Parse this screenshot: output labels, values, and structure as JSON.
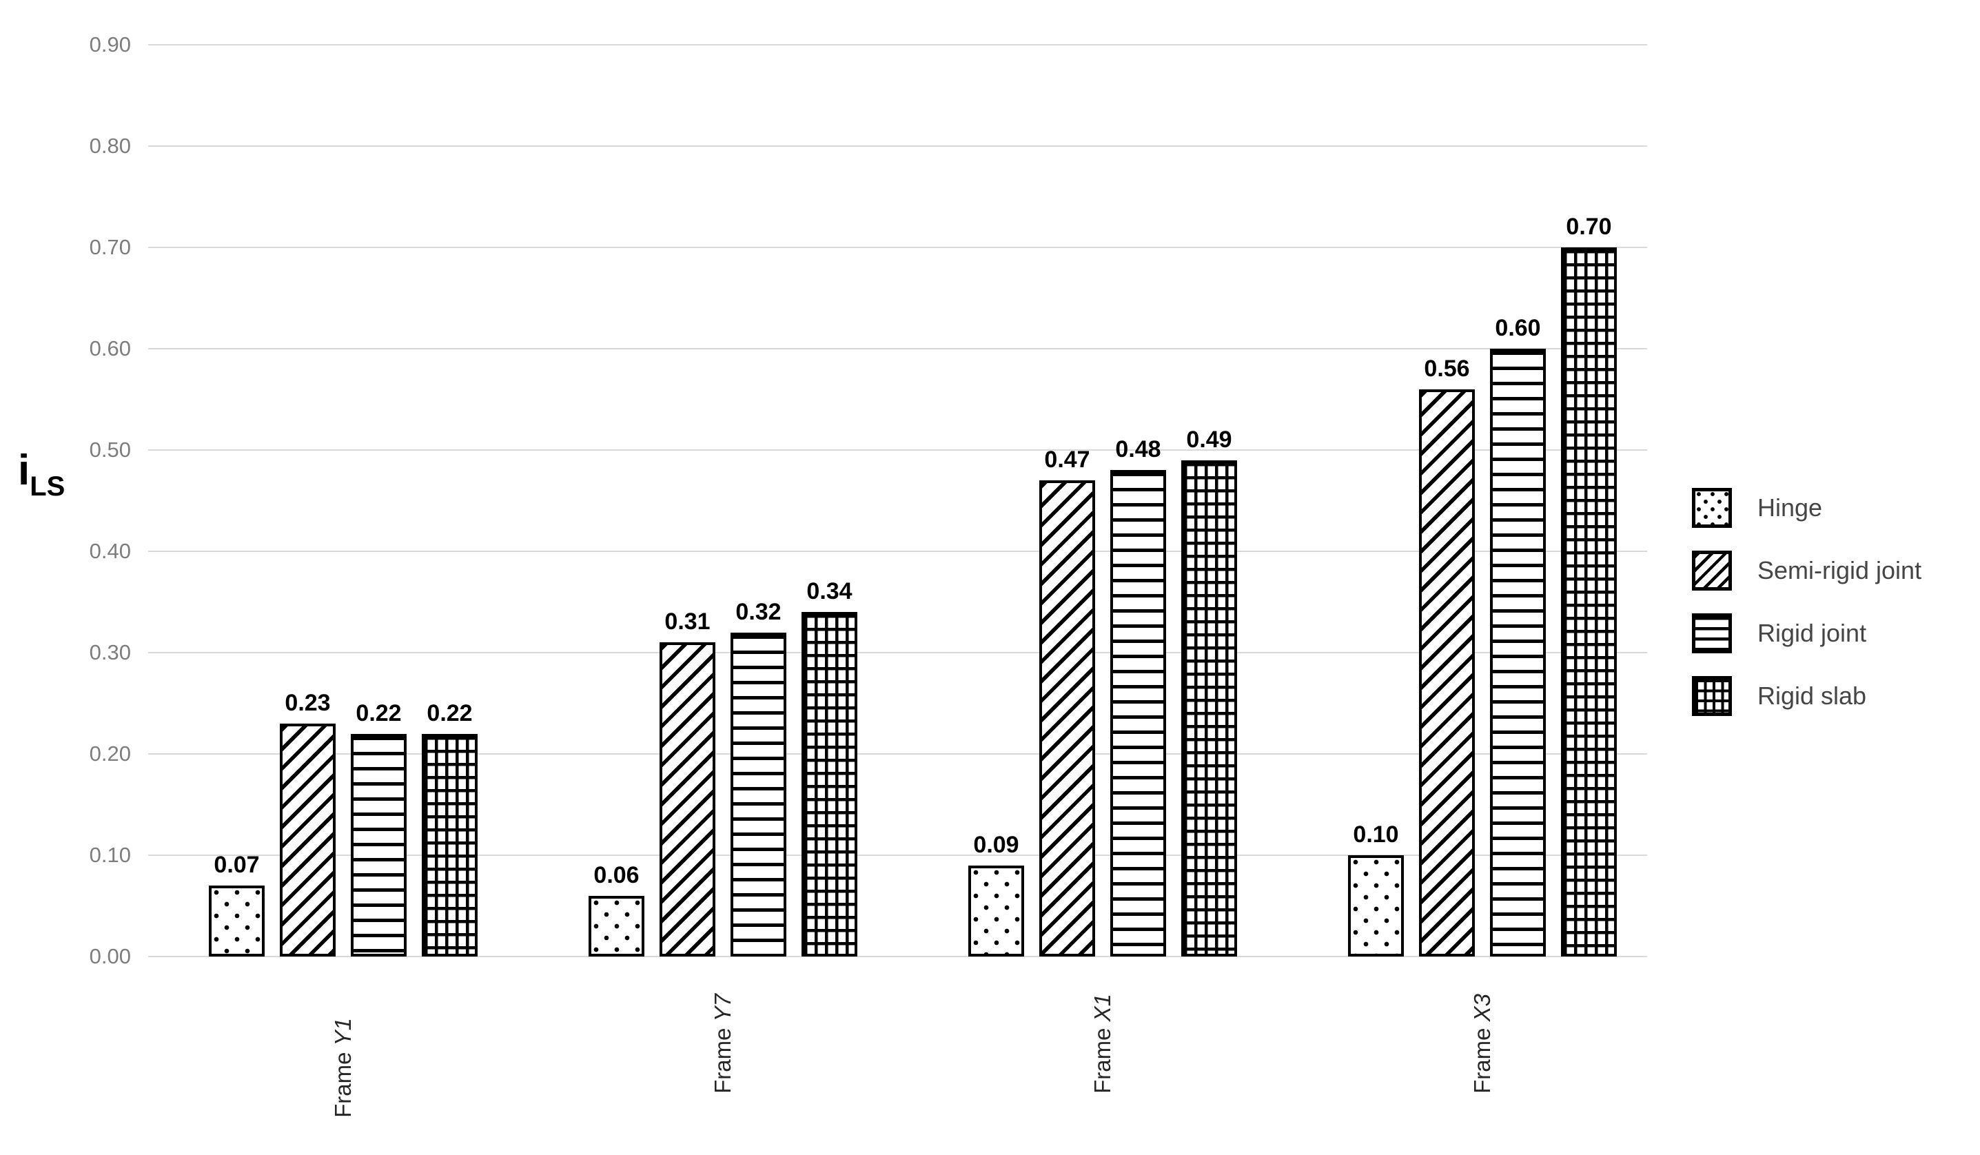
{
  "chart_data": {
    "type": "bar",
    "title": "",
    "ylabel_main": "i",
    "ylabel_sub": "LS",
    "xlabel": "",
    "y_axis": {
      "min": 0.0,
      "max": 0.9,
      "step": 0.1,
      "decimals": 2
    },
    "grid": true,
    "categories": [
      {
        "prefix": "Frame ",
        "code": "Y1"
      },
      {
        "prefix": "Frame ",
        "code": "Y7"
      },
      {
        "prefix": "Frame ",
        "code": "X1"
      },
      {
        "prefix": "Frame ",
        "code": "X3"
      }
    ],
    "series": [
      {
        "name": "Hinge",
        "pattern": "dots",
        "values": [
          0.07,
          0.06,
          0.09,
          0.1
        ]
      },
      {
        "name": "Semi-rigid joint",
        "pattern": "diagonal",
        "values": [
          0.23,
          0.31,
          0.47,
          0.56
        ]
      },
      {
        "name": "Rigid joint",
        "pattern": "hlines",
        "values": [
          0.22,
          0.32,
          0.48,
          0.6
        ]
      },
      {
        "name": "Rigid slab",
        "pattern": "grid",
        "values": [
          0.22,
          0.34,
          0.49,
          0.7
        ]
      }
    ],
    "legend": {
      "position": "right",
      "items": [
        "Hinge",
        "Semi-rigid joint",
        "Rigid joint",
        "Rigid slab"
      ]
    },
    "colors": {
      "background": "#ffffff",
      "bar_fill": "#ffffff",
      "bar_stroke": "#000000",
      "gridline": "#d9d9d9",
      "tick_label": "#7d7d7d",
      "value_label": "#000000",
      "category_label": "#262626",
      "legend_text": "#454545"
    }
  }
}
